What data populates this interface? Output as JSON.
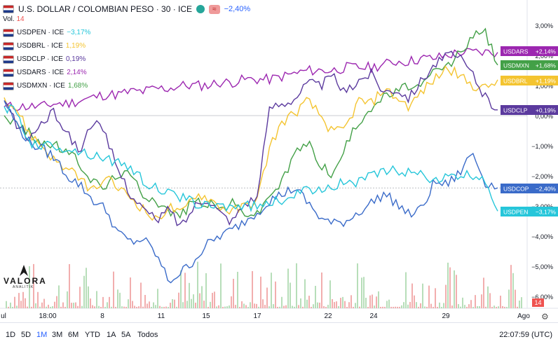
{
  "header": {
    "title": "U.S. DOLLAR / COLOMBIAN PESO · 30 · ICE",
    "change": "−2,40%",
    "vol_label": "Vol.",
    "vol_value": "14",
    "badge_text": "≈"
  },
  "legend": [
    {
      "label": "USDPEN · ICE",
      "change": "−3,17%",
      "color": "#26c6da"
    },
    {
      "label": "USDBRL · ICE",
      "change": "1,19%",
      "color": "#f4c430"
    },
    {
      "label": "USDCLP · ICE",
      "change": "0,19%",
      "color": "#5b3a9e"
    },
    {
      "label": "USDARS · ICE",
      "change": "2,14%",
      "color": "#9c27b0"
    },
    {
      "label": "USDMXN · ICE",
      "change": "1,68%",
      "color": "#43a047"
    }
  ],
  "logo": {
    "text": "VALORA",
    "sub": "ANALITIK"
  },
  "bottom": {
    "ranges": [
      "1D",
      "5D",
      "1M",
      "3M",
      "6M",
      "YTD",
      "1A",
      "5A",
      "Todos"
    ],
    "active": "1M",
    "clock": "22:07:59 (UTC)"
  },
  "volume_badge": "14",
  "chart_data": {
    "type": "line",
    "y_axis_unit": "%",
    "y_ticks": [
      "3,00%",
      "2,00%",
      "1,00%",
      "0,00%",
      "−1,00%",
      "−2,00%",
      "−3,00%",
      "−4,00%",
      "−5,00%",
      "−6,00%"
    ],
    "ylim": [
      -6,
      3.2
    ],
    "x_ticks": [
      "ul",
      "18:00",
      "8",
      "11",
      "15",
      "17",
      "22",
      "24",
      "29",
      "Ago"
    ],
    "series": [
      {
        "name": "USDARS",
        "color": "#9c27b0",
        "last": "+2,14%",
        "label": "USDARS",
        "values": [
          0.3,
          0.3,
          0.3,
          0.3,
          0.4,
          0.4,
          0.5,
          0.6,
          0.7,
          0.7,
          0.8,
          0.8,
          0.9,
          0.9,
          1.0,
          1.0,
          1.0,
          1.1,
          1.1,
          1.2,
          1.2,
          1.2,
          1.3,
          1.4,
          1.5,
          1.5,
          1.5,
          1.6,
          1.6,
          1.6,
          1.7,
          1.8,
          1.8,
          1.9,
          1.9,
          2.0,
          2.1,
          2.1,
          2.1,
          2.1
        ]
      },
      {
        "name": "USDMXN",
        "color": "#43a047",
        "last": "+1,68%",
        "label": "USDMXN",
        "values": [
          0.0,
          -0.3,
          -0.6,
          -0.9,
          -1.0,
          -1.2,
          -1.6,
          -2.2,
          -2.4,
          -1.9,
          -2.0,
          -2.6,
          -2.8,
          -3.2,
          -3.3,
          -2.8,
          -2.9,
          -3.1,
          -2.9,
          -3.2,
          -3.3,
          -2.6,
          -2.2,
          -1.2,
          -0.9,
          -1.6,
          -2.0,
          -1.0,
          -0.2,
          0.3,
          0.6,
          0.8,
          1.0,
          0.9,
          1.5,
          1.6,
          2.1,
          2.6,
          2.8,
          1.68
        ]
      },
      {
        "name": "USDBRL",
        "color": "#f4c430",
        "last": "+1,19%",
        "label": "USDBRL",
        "values": [
          0.6,
          0.2,
          -0.6,
          -1.0,
          -1.5,
          -1.8,
          -2.1,
          -2.5,
          -2.1,
          -2.4,
          -2.7,
          -3.1,
          -3.5,
          -3.0,
          -3.3,
          -2.6,
          -2.7,
          -3.0,
          -3.2,
          -3.0,
          -2.8,
          -1.0,
          -0.2,
          0.1,
          0.5,
          0.0,
          -0.6,
          -0.4,
          0.5,
          0.4,
          0.9,
          0.6,
          0.3,
          0.8,
          1.2,
          1.6,
          1.3,
          1.0,
          0.9,
          1.19
        ]
      },
      {
        "name": "USDCLP",
        "color": "#5b3a9e",
        "last": "+0,19%",
        "label": "USDCLP",
        "values": [
          0.5,
          -0.3,
          -0.8,
          -0.2,
          0.1,
          -0.6,
          -1.2,
          -0.1,
          -0.7,
          -1.8,
          -2.6,
          -3.1,
          -3.5,
          -3.1,
          -3.7,
          -3.0,
          -2.7,
          -3.2,
          -3.5,
          -2.9,
          -2.7,
          0.3,
          0.4,
          0.6,
          1.1,
          1.0,
          1.3,
          0.7,
          1.2,
          1.4,
          0.8,
          0.9,
          0.6,
          1.2,
          1.7,
          2.0,
          1.9,
          1.4,
          0.6,
          0.19
        ]
      },
      {
        "name": "USDCOP",
        "color": "#3a6bc9",
        "last": "−2,40%",
        "label": "USDCOP",
        "values": [
          0.5,
          -0.3,
          -0.9,
          -1.1,
          -1.4,
          -2.0,
          -2.3,
          -2.8,
          -3.1,
          -3.9,
          -4.2,
          -4.1,
          -4.6,
          -5.5,
          -5.2,
          -4.8,
          -4.3,
          -4.0,
          -3.8,
          -3.5,
          -3.2,
          -2.8,
          -2.6,
          -2.4,
          -2.9,
          -3.4,
          -3.6,
          -3.5,
          -3.2,
          -2.9,
          -2.6,
          -2.9,
          -3.3,
          -3.1,
          -2.2,
          -2.3,
          -1.9,
          -1.2,
          -2.2,
          -2.4
        ]
      },
      {
        "name": "USDPEN",
        "color": "#26c6da",
        "last": "−3,17%",
        "label": "USDPEN",
        "values": [
          0.3,
          0.1,
          -0.9,
          -1.0,
          -1.0,
          -1.1,
          -1.2,
          -1.3,
          -1.4,
          -1.6,
          -1.7,
          -2.2,
          -2.4,
          -2.6,
          -2.7,
          -2.9,
          -3.0,
          -3.0,
          -3.0,
          -3.0,
          -3.0,
          -2.9,
          -2.8,
          -2.6,
          -2.5,
          -2.4,
          -2.3,
          -2.2,
          -2.2,
          -2.0,
          -1.9,
          -1.8,
          -1.9,
          -2.0,
          -2.1,
          -2.1,
          -2.0,
          -2.0,
          -2.1,
          -3.17
        ]
      }
    ]
  }
}
